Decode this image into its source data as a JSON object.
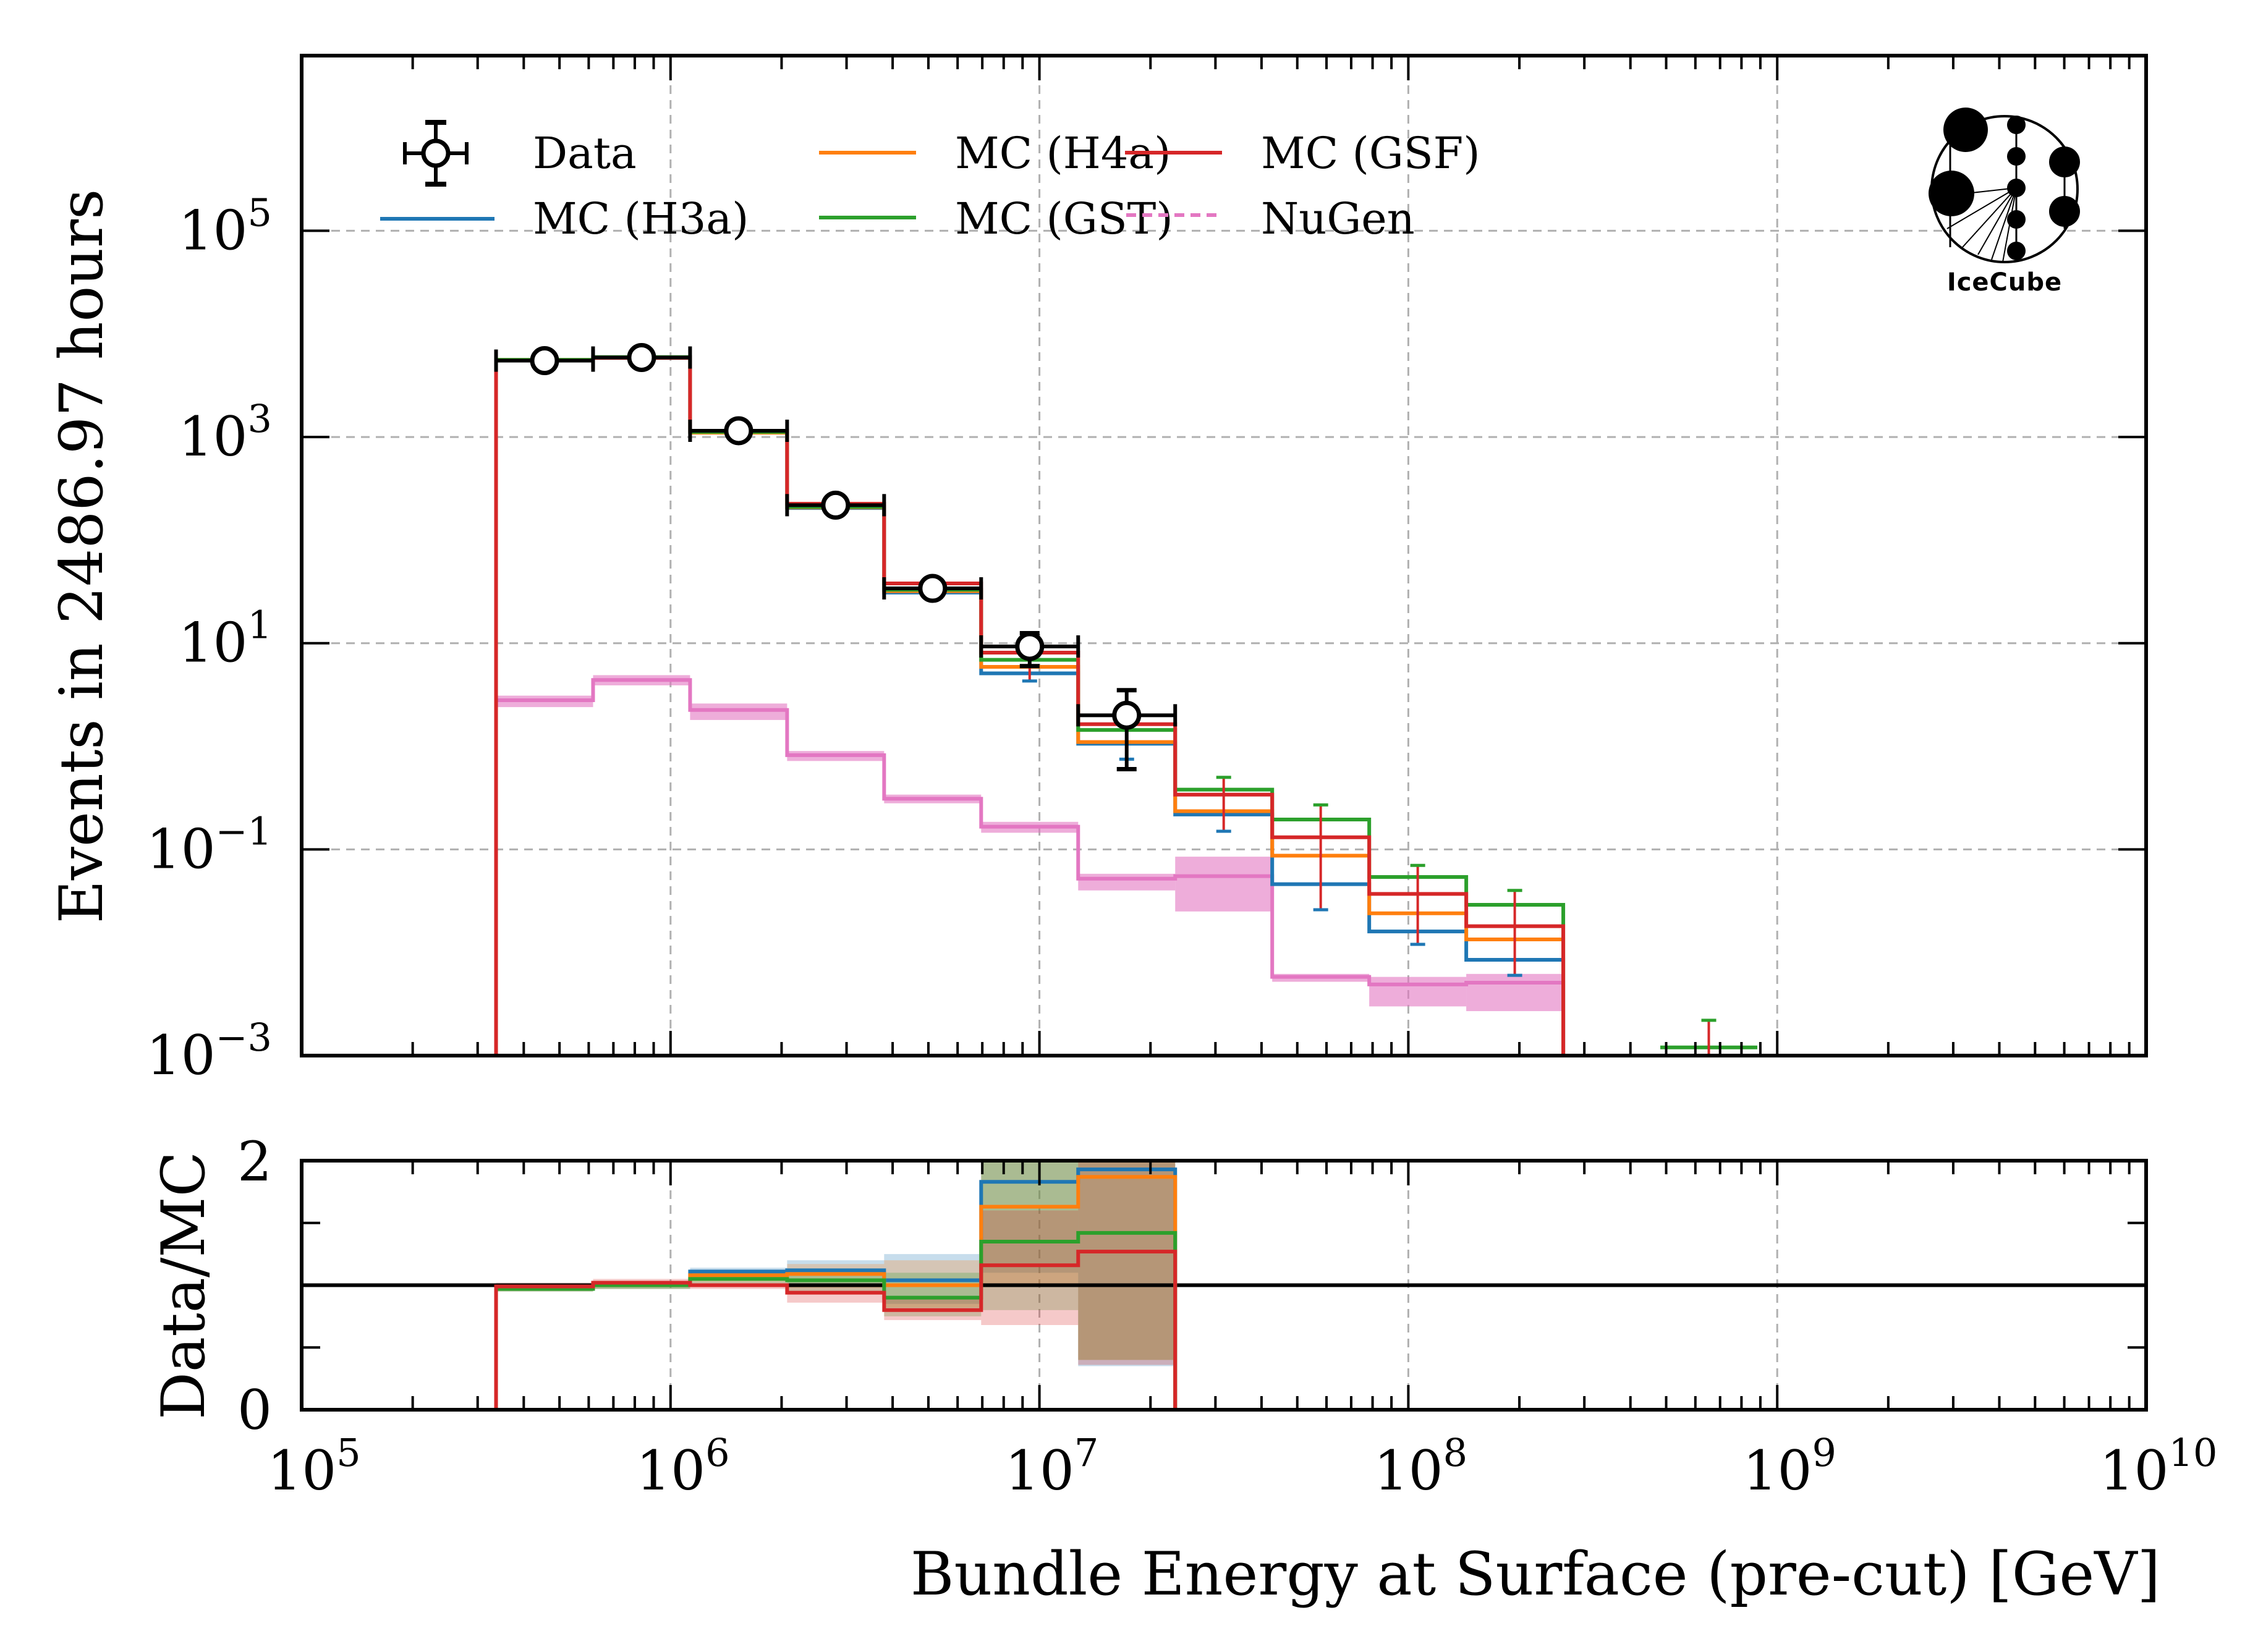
{
  "chart_data": [
    {
      "panel": "main",
      "type": "histogram",
      "xscale": "log",
      "yscale": "log",
      "xlim": [
        100000,
        10000000000
      ],
      "ylim": [
        0.001,
        5000000
      ],
      "grid": true,
      "xlabel": "",
      "ylabel": "Events in 2486.97 hours",
      "yticks": [
        {
          "value": 100000,
          "base": "10",
          "exp": "5"
        },
        {
          "value": 1000,
          "base": "10",
          "exp": "3"
        },
        {
          "value": 10,
          "base": "10",
          "exp": "1"
        },
        {
          "value": 0.1,
          "base": "10",
          "exp": "−1"
        },
        {
          "value": 0.001,
          "base": "10",
          "exp": "−3"
        }
      ],
      "bin_edges_log10": [
        5.527,
        5.79,
        6.053,
        6.316,
        6.579,
        6.842,
        7.105,
        7.368,
        7.631,
        7.894,
        8.157,
        8.42,
        8.683,
        8.946
      ],
      "data": {
        "name": "Data",
        "values": [
          5500,
          5900,
          1150,
          218,
          34,
          9.3,
          2.0,
          null,
          null,
          null,
          null,
          null,
          null
        ],
        "err_low": [
          5300,
          5700,
          1100,
          205,
          30,
          6.0,
          0.6,
          null,
          null,
          null,
          null,
          null,
          null
        ],
        "err_high": [
          5700,
          6100,
          1200,
          232,
          38,
          12.5,
          3.5,
          null,
          null,
          null,
          null,
          null,
          null
        ]
      },
      "series": [
        {
          "name": "MC (H3a)",
          "color": "#1f77b4",
          "values": [
            5550,
            5950,
            1120,
            205,
            31,
            5.1,
            1.06,
            0.218,
            0.046,
            0.016,
            0.0085,
            0,
            0.001
          ]
        },
        {
          "name": "MC (H4a)",
          "color": "#ff7f0e",
          "values": [
            5600,
            5950,
            1100,
            208,
            32,
            5.9,
            1.1,
            0.235,
            0.087,
            0.024,
            0.0134,
            0,
            0.001
          ]
        },
        {
          "name": "MC (GST)",
          "color": "#2ca02c",
          "values": [
            5600,
            5950,
            1120,
            210,
            33,
            6.9,
            1.44,
            0.38,
            0.195,
            0.054,
            0.029,
            0,
            0.0012
          ]
        },
        {
          "name": "MC (GSF)",
          "color": "#d62728",
          "values": [
            5500,
            5850,
            1150,
            225,
            38,
            8.1,
            1.64,
            0.34,
            0.131,
            0.037,
            0.018,
            0,
            0.001
          ]
        }
      ],
      "mc_errors": [
        {
          "bin": 5,
          "low": 4.3,
          "high": 9.5
        },
        {
          "bin": 6,
          "low": 0.75,
          "high": 2.1
        },
        {
          "bin": 7,
          "low": 0.15,
          "high": 0.5
        },
        {
          "bin": 8,
          "low": 0.026,
          "high": 0.27
        },
        {
          "bin": 9,
          "low": 0.012,
          "high": 0.07
        },
        {
          "bin": 10,
          "low": 0.006,
          "high": 0.04
        }
      ],
      "nugen": {
        "name": "NuGen",
        "color": "#e377c2",
        "style": "dashed",
        "values": [
          2.8,
          4.4,
          2.25,
          0.82,
          0.31,
          0.166,
          0.052,
          0.055,
          0.0058,
          0.0049,
          0.0051,
          0,
          0
        ],
        "band_low": [
          2.4,
          3.9,
          1.8,
          0.72,
          0.28,
          0.145,
          0.04,
          0.025,
          0.0052,
          0.003,
          0.0027,
          0,
          0
        ],
        "band_high": [
          3.1,
          4.9,
          2.6,
          0.9,
          0.34,
          0.185,
          0.058,
          0.085,
          0.0062,
          0.0058,
          0.0062,
          0,
          0
        ]
      },
      "legend": {
        "placement": "top-left",
        "columns": 3,
        "entries": [
          "Data",
          "MC (H3a)",
          "MC (H4a)",
          "MC (GST)",
          "MC (GSF)",
          "NuGen"
        ]
      },
      "logo_text": "IceCube"
    },
    {
      "panel": "ratio",
      "type": "step",
      "xscale": "log",
      "xlim": [
        100000,
        10000000000
      ],
      "ylim": [
        0,
        2
      ],
      "ylabel": "Data/MC",
      "xlabel": "Bundle Energy at Surface (pre-cut) [GeV]",
      "yticks": [
        {
          "value": 0,
          "label": "0"
        },
        {
          "value": 2,
          "label": "2"
        }
      ],
      "xticks": [
        {
          "value": 100000,
          "base": "10",
          "exp": "5"
        },
        {
          "value": 1000000,
          "base": "10",
          "exp": "6"
        },
        {
          "value": 10000000,
          "base": "10",
          "exp": "7"
        },
        {
          "value": 100000000,
          "base": "10",
          "exp": "8"
        },
        {
          "value": 1000000000,
          "base": "10",
          "exp": "9"
        },
        {
          "value": 10000000000,
          "base": "10",
          "exp": "10"
        }
      ],
      "reference_line": 1,
      "series": [
        {
          "name": "MC (H3a)",
          "color": "#1f77b4",
          "values": [
            0.98,
            1.0,
            1.11,
            1.12,
            1.04,
            1.83,
            1.93
          ],
          "band_low": [
            0.95,
            0.97,
            1.05,
            1.0,
            0.85,
            1.1,
            0.35
          ],
          "band_high": [
            1.01,
            1.03,
            1.14,
            1.2,
            1.25,
            2.2,
            2.5
          ]
        },
        {
          "name": "MC (H4a)",
          "color": "#ff7f0e",
          "values": [
            0.97,
            1.0,
            1.08,
            1.09,
            1.0,
            1.63,
            1.87
          ],
          "band_low": [
            0.95,
            0.97,
            1.03,
            0.98,
            0.82,
            1.0,
            0.4
          ],
          "band_high": [
            1.0,
            1.03,
            1.12,
            1.17,
            1.2,
            2.2,
            2.5
          ]
        },
        {
          "name": "MC (GST)",
          "color": "#2ca02c",
          "values": [
            0.97,
            1.0,
            1.05,
            1.04,
            0.9,
            1.35,
            1.42
          ],
          "band_low": [
            0.95,
            0.97,
            1.0,
            0.95,
            0.75,
            0.8,
            0.4
          ],
          "band_high": [
            1.0,
            1.03,
            1.1,
            1.12,
            1.1,
            2.0,
            2.2
          ]
        },
        {
          "name": "MC (GSF)",
          "color": "#d62728",
          "values": [
            0.99,
            1.02,
            1.0,
            0.94,
            0.8,
            1.16,
            1.27
          ],
          "band_low": [
            0.96,
            0.99,
            0.97,
            0.86,
            0.72,
            0.68,
            0.36
          ],
          "band_high": [
            1.02,
            1.05,
            1.03,
            1.0,
            0.9,
            1.6,
            2.2
          ]
        }
      ]
    }
  ]
}
